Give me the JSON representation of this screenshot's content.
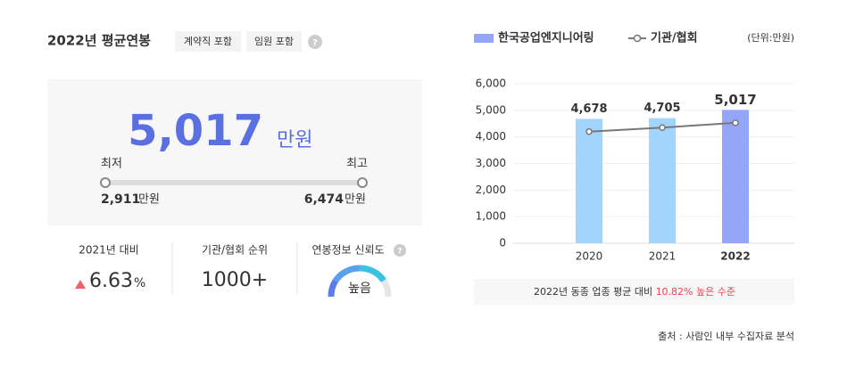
{
  "header": {
    "title": "2022년 평균연봉",
    "tags": [
      "계약직 포함",
      "임원 포함"
    ],
    "help": "?"
  },
  "salary": {
    "value": "5,017",
    "unit": "만원",
    "min_label": "최저",
    "max_label": "최고",
    "min_value": "2,911",
    "min_unit": "만원",
    "max_value": "6,474",
    "max_unit": "만원"
  },
  "stats": [
    {
      "label": "2021년 대비",
      "value": "6.63",
      "unit": "%"
    },
    {
      "label": "기관/협회 순위",
      "value": "1000+"
    },
    {
      "label": "연봉정보 신뢰도",
      "value": "높음",
      "help": "?"
    }
  ],
  "chart_data": {
    "type": "bar",
    "unit_label": "(단위:만원)",
    "categories": [
      "2020",
      "2021",
      "2022"
    ],
    "series": [
      {
        "name": "한국공업엔지니어링",
        "type": "bar",
        "color": "#95a5f7",
        "colors": [
          "#a3d4fb",
          "#a3d4fb",
          "#95a5f7"
        ],
        "values": [
          4678,
          4705,
          5017
        ],
        "value_labels": [
          "4,678",
          "4,705",
          "5,017"
        ]
      },
      {
        "name": "기관/협회",
        "type": "line",
        "color": "#777777",
        "values": [
          4200,
          4350,
          4530
        ]
      }
    ],
    "ylim": [
      0,
      6000
    ],
    "yticks": [
      0,
      {
        "value": 1000,
        "label": "1,000"
      },
      {
        "value": 2000,
        "label": "2,000"
      },
      {
        "value": 3000,
        "label": "3,000"
      },
      {
        "value": 4000,
        "label": "4,000"
      },
      {
        "value": 5000,
        "label": "5,000"
      },
      {
        "value": 6000,
        "label": "6,000"
      }
    ],
    "grid": true
  },
  "note": {
    "text": "2022년 동종 업종 평균 대비",
    "highlight": "10.82% 높은 수준"
  },
  "source": "출처 : 사람인 내부 수집자료 분석"
}
